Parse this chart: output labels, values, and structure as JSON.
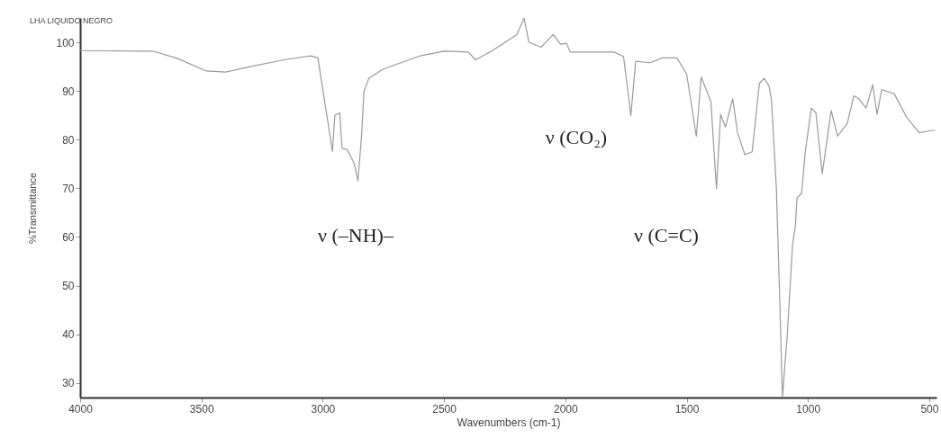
{
  "chart_data": {
    "type": "line",
    "title": "LHA LIQUIDO NEGRO",
    "xlabel": "Wavenumbers (cm-1)",
    "ylabel": "%Transmittance",
    "x": [
      4000,
      3750,
      3700,
      3600,
      3480,
      3400,
      3300,
      3150,
      3050,
      3020,
      2960,
      2950,
      2930,
      2920,
      2900,
      2870,
      2855,
      2840,
      2830,
      2810,
      2750,
      2600,
      2500,
      2400,
      2370,
      2300,
      2200,
      2170,
      2150,
      2100,
      2050,
      2020,
      1995,
      1980,
      1800,
      1760,
      1730,
      1710,
      1650,
      1600,
      1540,
      1500,
      1460,
      1440,
      1400,
      1377,
      1360,
      1340,
      1310,
      1290,
      1260,
      1230,
      1200,
      1180,
      1160,
      1150,
      1130,
      1115,
      1105,
      1085,
      1063,
      1052,
      1045,
      1026,
      1011,
      986,
      967,
      941,
      904,
      878,
      838,
      811,
      790,
      760,
      733,
      715,
      696,
      644,
      593,
      541,
      489,
      475
    ],
    "series": [
      {
        "color": "#9a9a9a",
        "values": [
          98.3,
          98.2,
          98.2,
          96.7,
          94.1,
          93.9,
          95.0,
          96.5,
          97.2,
          96.8,
          77.6,
          85.0,
          85.5,
          78.2,
          78.0,
          75.1,
          71.5,
          80.7,
          89.9,
          92.6,
          94.5,
          97.2,
          98.2,
          98.0,
          96.4,
          98.3,
          101.6,
          105.0,
          100.0,
          99.0,
          101.6,
          99.6,
          99.8,
          98.0,
          98.0,
          97.1,
          84.9,
          96.1,
          95.8,
          96.8,
          96.8,
          93.5,
          80.7,
          92.9,
          87.8,
          69.9,
          85.2,
          82.6,
          88.4,
          81.4,
          76.9,
          77.5,
          91.6,
          92.6,
          91.0,
          88.0,
          70.0,
          45.0,
          27.0,
          40.0,
          58.6,
          62.2,
          68.0,
          69.0,
          77.5,
          86.5,
          85.5,
          73.0,
          86.0,
          80.7,
          83.3,
          89.0,
          88.4,
          86.5,
          91.3,
          85.2,
          90.3,
          89.4,
          84.6,
          81.4,
          81.9,
          81.9
        ]
      }
    ],
    "xlim": [
      4000,
      470
    ],
    "ylim": [
      27,
      105
    ],
    "xticks": [
      4000,
      3500,
      3000,
      2500,
      2000,
      1500,
      1000,
      500
    ],
    "yticks": [
      30,
      40,
      50,
      60,
      70,
      80,
      90,
      100
    ],
    "grid": false,
    "marker": "none",
    "line_style": "solid",
    "annotations": [
      "ν (–NH)–",
      "ν (CO₂)",
      "ν (C=C)"
    ]
  }
}
